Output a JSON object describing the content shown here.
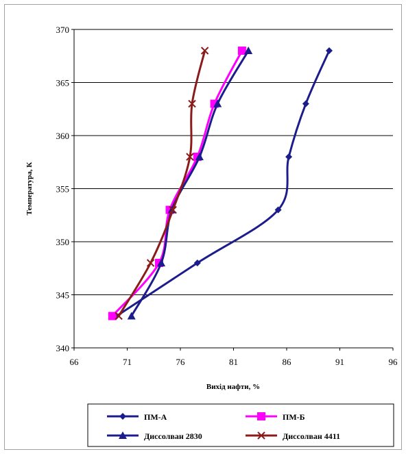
{
  "chart_data": {
    "type": "line",
    "title": "",
    "xlabel": "Вихід нафти, %",
    "ylabel": "Температура, К",
    "xlim": [
      66,
      96
    ],
    "ylim": [
      340,
      370
    ],
    "xticks": [
      66,
      71,
      76,
      81,
      86,
      91,
      96
    ],
    "yticks": [
      340,
      345,
      350,
      355,
      360,
      365,
      370
    ],
    "grid": "horizontal",
    "legend_position": "bottom",
    "series": [
      {
        "name": "ПМ-А",
        "color": "#1c1c8c",
        "marker": "diamond",
        "x": [
          70.0,
          77.6,
          85.2,
          86.2,
          87.8,
          90.0
        ],
        "y": [
          343,
          348,
          353,
          358,
          363,
          368
        ]
      },
      {
        "name": "ПМ-Б",
        "color": "#ff00ff",
        "marker": "square",
        "x": [
          69.6,
          74.0,
          75.0,
          77.6,
          79.2,
          81.8
        ],
        "y": [
          343,
          348,
          353,
          358,
          363,
          368
        ]
      },
      {
        "name": "Диссолван 2830",
        "color": "#1c1c8c",
        "marker": "triangle",
        "x": [
          71.4,
          74.2,
          75.2,
          77.8,
          79.5,
          82.4
        ],
        "y": [
          343,
          348,
          353,
          358,
          363,
          368
        ]
      },
      {
        "name": "Диссолван 4411",
        "color": "#8b1a1a",
        "marker": "x",
        "x": [
          70.2,
          73.2,
          75.3,
          76.9,
          77.1,
          78.3
        ],
        "y": [
          343,
          348,
          353,
          358,
          363,
          368
        ]
      }
    ]
  }
}
